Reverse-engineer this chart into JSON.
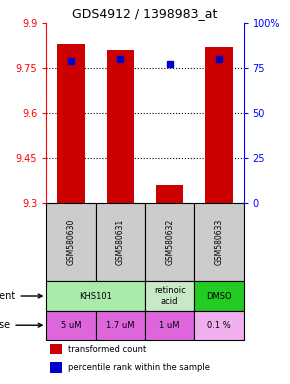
{
  "title": "GDS4912 / 1398983_at",
  "samples": [
    "GSM580630",
    "GSM580631",
    "GSM580632",
    "GSM580633"
  ],
  "bar_values": [
    9.83,
    9.81,
    9.36,
    9.82
  ],
  "bar_bottom": 9.3,
  "percentile_values": [
    79,
    80,
    77,
    80
  ],
  "ylim": [
    9.3,
    9.9
  ],
  "yticks": [
    9.3,
    9.45,
    9.6,
    9.75,
    9.9
  ],
  "ytick_labels": [
    "9.3",
    "9.45",
    "9.6",
    "9.75",
    "9.9"
  ],
  "right_yticks": [
    0,
    25,
    50,
    75,
    100
  ],
  "right_ytick_labels": [
    "0",
    "25",
    "50",
    "75",
    "100%"
  ],
  "agent_groups": [
    {
      "cols": [
        0,
        1
      ],
      "text": "KHS101",
      "color": "#aaeaaa"
    },
    {
      "cols": [
        2
      ],
      "text": "retinoic\nacid",
      "color": "#c8e8c8"
    },
    {
      "cols": [
        3
      ],
      "text": "DMSO",
      "color": "#22cc22"
    }
  ],
  "dose_labels": [
    "5 uM",
    "1.7 uM",
    "1 uM",
    "0.1 %"
  ],
  "dose_colors": [
    "#dd66dd",
    "#dd66dd",
    "#dd66dd",
    "#f0b0f0"
  ],
  "bar_color": "#cc0000",
  "dot_color": "#0000cc",
  "sample_bg": "#cccccc",
  "tick_fontsize": 7,
  "title_fontsize": 9,
  "bar_width": 0.55
}
